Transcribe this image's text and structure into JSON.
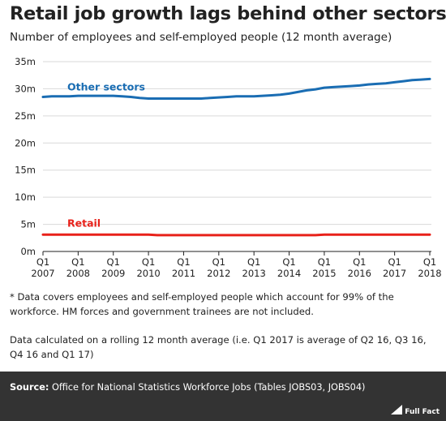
{
  "title": "Retail job growth lags behind other sectors",
  "subtitle": "Number of employees and self-employed people (12 month average)",
  "chart_data": {
    "type": "line",
    "x": [
      "Q1 2007",
      "Q2 2007",
      "Q3 2007",
      "Q4 2007",
      "Q1 2008",
      "Q2 2008",
      "Q3 2008",
      "Q4 2008",
      "Q1 2009",
      "Q2 2009",
      "Q3 2009",
      "Q4 2009",
      "Q1 2010",
      "Q2 2010",
      "Q3 2010",
      "Q4 2010",
      "Q1 2011",
      "Q2 2011",
      "Q3 2011",
      "Q4 2011",
      "Q1 2012",
      "Q2 2012",
      "Q3 2012",
      "Q4 2012",
      "Q1 2013",
      "Q2 2013",
      "Q3 2013",
      "Q4 2013",
      "Q1 2014",
      "Q2 2014",
      "Q3 2014",
      "Q4 2014",
      "Q1 2015",
      "Q2 2015",
      "Q3 2015",
      "Q4 2015",
      "Q1 2016",
      "Q2 2016",
      "Q3 2016",
      "Q4 2016",
      "Q1 2017",
      "Q2 2017",
      "Q3 2017",
      "Q4 2017",
      "Q1 2018"
    ],
    "xticks": [
      {
        "q": "Q1",
        "year": "2007"
      },
      {
        "q": "Q1",
        "year": "2008"
      },
      {
        "q": "Q1",
        "year": "2009"
      },
      {
        "q": "Q1",
        "year": "2010"
      },
      {
        "q": "Q1",
        "year": "2011"
      },
      {
        "q": "Q1",
        "year": "2012"
      },
      {
        "q": "Q1",
        "year": "2013"
      },
      {
        "q": "Q1",
        "year": "2014"
      },
      {
        "q": "Q1",
        "year": "2015"
      },
      {
        "q": "Q1",
        "year": "2016"
      },
      {
        "q": "Q1",
        "year": "2017"
      },
      {
        "q": "Q1",
        "year": "2018"
      }
    ],
    "ytick_labels": [
      "0m",
      "5m",
      "10m",
      "15m",
      "20m",
      "25m",
      "30m",
      "35m"
    ],
    "ylim": [
      0,
      35
    ],
    "grid": true,
    "series": [
      {
        "name": "Other sectors",
        "color": "#1a6db3",
        "values": [
          28.5,
          28.6,
          28.6,
          28.6,
          28.7,
          28.7,
          28.7,
          28.7,
          28.7,
          28.6,
          28.5,
          28.3,
          28.2,
          28.2,
          28.2,
          28.2,
          28.2,
          28.2,
          28.2,
          28.3,
          28.4,
          28.5,
          28.6,
          28.6,
          28.6,
          28.7,
          28.8,
          28.9,
          29.1,
          29.4,
          29.7,
          29.9,
          30.2,
          30.3,
          30.4,
          30.5,
          30.6,
          30.8,
          30.9,
          31.0,
          31.2,
          31.4,
          31.6,
          31.7,
          31.8
        ]
      },
      {
        "name": "Retail",
        "color": "#e8211a",
        "values": [
          3.1,
          3.1,
          3.1,
          3.1,
          3.1,
          3.1,
          3.1,
          3.1,
          3.1,
          3.1,
          3.1,
          3.1,
          3.1,
          3.0,
          3.0,
          3.0,
          3.0,
          3.0,
          3.0,
          3.0,
          3.0,
          3.0,
          3.0,
          3.0,
          3.0,
          3.0,
          3.0,
          3.0,
          3.0,
          3.0,
          3.0,
          3.0,
          3.1,
          3.1,
          3.1,
          3.1,
          3.1,
          3.1,
          3.1,
          3.1,
          3.1,
          3.1,
          3.1,
          3.1,
          3.1
        ]
      }
    ]
  },
  "notes": {
    "note1": "* Data covers employees and self-employed people which account for 99% of the workforce. HM forces and government trainees are not included.",
    "note2": "Data calculated on a rolling 12 month average (i.e. Q1 2017 is average of Q2 16, Q3 16, Q4 16 and Q1 17)"
  },
  "footer": {
    "source_label": "Source:",
    "source_text": "Office for National Statistics Workforce Jobs (Tables JOBS03, JOBS04)",
    "logo_text": "Full Fact",
    "bg_color": "#333333"
  }
}
